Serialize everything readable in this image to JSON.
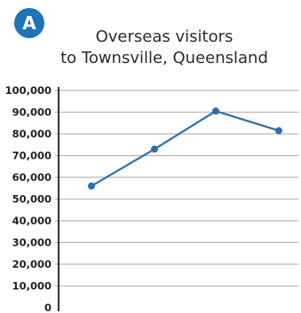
{
  "badge": {
    "label": "A",
    "color": "#1f73b7"
  },
  "chart_data": {
    "type": "line",
    "title": [
      "Overseas visitors",
      "to Townsville, Queensland"
    ],
    "xlabel": "",
    "ylabel": "",
    "ylim": [
      0,
      100000
    ],
    "y_ticks": [
      {
        "value": 0,
        "label": "0"
      },
      {
        "value": 10000,
        "label": "10,000"
      },
      {
        "value": 20000,
        "label": "20,000"
      },
      {
        "value": 30000,
        "label": "30,000"
      },
      {
        "value": 40000,
        "label": "40,000"
      },
      {
        "value": 50000,
        "label": "50,000"
      },
      {
        "value": 60000,
        "label": "60,000"
      },
      {
        "value": 70000,
        "label": "70,000"
      },
      {
        "value": 80000,
        "label": "80,000"
      },
      {
        "value": 90000,
        "label": "90,000"
      },
      {
        "value": 100000,
        "label": "100,000"
      }
    ],
    "grid": true,
    "series": [
      {
        "color": "#2b6fad",
        "values": [
          56000,
          73000,
          90500,
          81500
        ]
      }
    ]
  }
}
